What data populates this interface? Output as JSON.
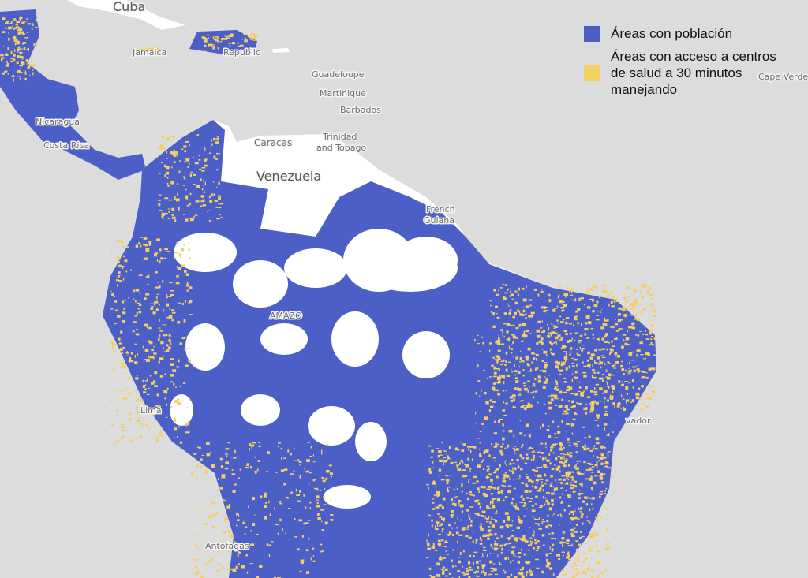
{
  "colors": {
    "ocean": "#dcdcdc",
    "land": "#ffffff",
    "population": "#4c5fc7",
    "health_access": "#f6cf62"
  },
  "legend": {
    "items": [
      {
        "label": "Áreas con población",
        "color": "#4c5fc7"
      },
      {
        "label": "Áreas con acceso a centros de salud a 30 minutos manejando",
        "color": "#f6cf62"
      }
    ]
  },
  "map_labels": {
    "cuba": "Cuba",
    "jamaica": "Jamaica",
    "dominican_republic": "Republic",
    "guadeloupe": "Guadeloupe",
    "martinique": "Martinique",
    "barbados": "Barbados",
    "trinidad_1": "Trinidad",
    "trinidad_2": "and Tobago",
    "caracas": "Caracas",
    "venezuela": "Venezuela",
    "french_guiana_1": "French",
    "french_guiana_2": "Guiana",
    "cape_verde": "Cape Verde",
    "nicaragua": "Nicaragua",
    "costa_rica": "Costa Rica",
    "amazonas": "AMAZO",
    "lima": "Lima",
    "antofagasta": "Antofagas",
    "salvador": "vador"
  }
}
